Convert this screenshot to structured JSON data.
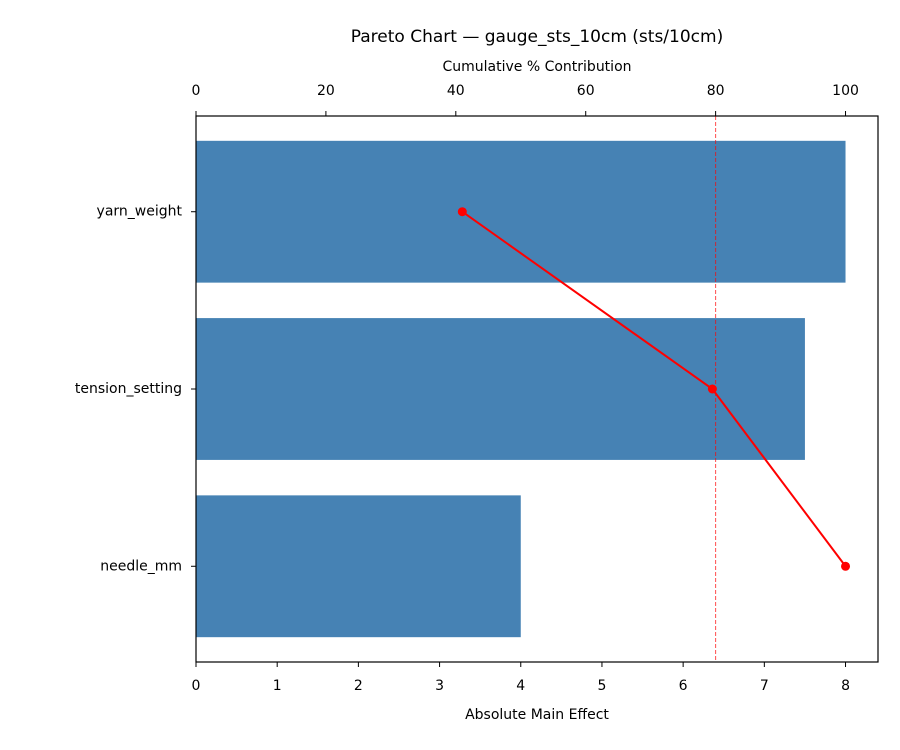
{
  "chart_data": {
    "type": "pareto",
    "orientation": "horizontal",
    "title": "Pareto Chart — gauge_sts_10cm (sts/10cm)",
    "categories": [
      "yarn_weight",
      "tension_setting",
      "needle_mm"
    ],
    "values": [
      8,
      7.5,
      4
    ],
    "color": "#4682b4",
    "xlabel": "Absolute Main Effect",
    "xlim": [
      0,
      8.4
    ],
    "xticks": [
      0,
      1,
      2,
      3,
      4,
      5,
      6,
      7,
      8
    ],
    "cumulative": {
      "values": [
        41.0,
        79.5,
        100
      ],
      "color": "#ff0000"
    },
    "x2label": "Cumulative % Contribution",
    "x2lim": [
      0,
      105
    ],
    "x2ticks": [
      0,
      20,
      40,
      60,
      80,
      100
    ],
    "threshold": 80
  }
}
